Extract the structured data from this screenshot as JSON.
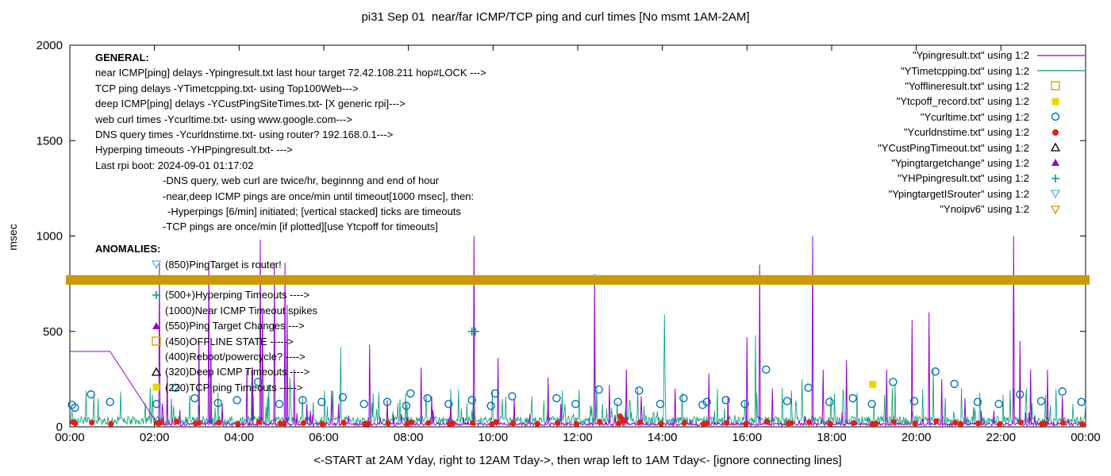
{
  "title": "pi31 Sep 01  near/far ICMP/TCP ping and curl times [No msmt 1AM-2AM]",
  "axes": {
    "ylabel": "msec",
    "xlabel": "<-START at 2AM Yday, right to 12AM Tday->, then wrap left to 1AM Tday<- [ignore connecting lines]",
    "ylim": [
      0,
      2000
    ],
    "yticks": [
      0,
      500,
      1000,
      1500,
      2000
    ],
    "xticks": [
      "00:00",
      "02:00",
      "04:00",
      "06:00",
      "08:00",
      "10:00",
      "12:00",
      "14:00",
      "16:00",
      "18:00",
      "20:00",
      "22:00",
      "00:00"
    ]
  },
  "legend": [
    {
      "label": "\"Ypingresult.txt\" using 1:2",
      "sample": "line",
      "color": "#9400D3"
    },
    {
      "label": "\"YTimetcpping.txt\" using 1:2",
      "sample": "line",
      "color": "#009E73"
    },
    {
      "label": "\"Yofflineresult.txt\" using 1:2",
      "sample": "square-open",
      "color": "#E69F00"
    },
    {
      "label": "\"Ytcpoff_record.txt\" using 1:2",
      "sample": "square-filled",
      "color": "#E9D700"
    },
    {
      "label": "\"Ycurltime.txt\" using 1:2",
      "sample": "circle-open",
      "color": "#0072B2"
    },
    {
      "label": "\"Ycurldnstime.txt\" using 1:2",
      "sample": "circle-filled",
      "color": "#E51E10"
    },
    {
      "label": "\"YCustPingTimeout.txt\" using 1:2",
      "sample": "tri-up-open",
      "color": "#000000"
    },
    {
      "label": "\"Ypingtargetchange\" using 1:2",
      "sample": "tri-up-filled",
      "color": "#9400D3"
    },
    {
      "label": "\"YHPpingresult.txt\" using 1:2",
      "sample": "plus",
      "color": "#009E73"
    },
    {
      "label": "\"YpingtargetISrouter\" using 1:2",
      "sample": "tri-down-open",
      "color": "#56B4E9"
    },
    {
      "label": "\"Ynoipv6\" using 1:2",
      "sample": "tri-down-open",
      "color": "#CC9900"
    }
  ],
  "general": {
    "heading": "GENERAL:",
    "lines": [
      {
        "text": "near ICMP[ping] delays -Ypingresult.txt last hour target 72.42.108.211 hop#LOCK --->",
        "indent": 0
      },
      {
        "text": "TCP ping delays -YTimetcpping.txt- using Top100Web--->",
        "indent": 0
      },
      {
        "text": "deep ICMP[ping] delays -YCustPingSiteTimes.txt- [X generic rpi]--->",
        "indent": 0
      },
      {
        "text": "web curl times -Ycurltime.txt- using www.google.com--->",
        "indent": 0
      },
      {
        "text": "DNS query times -Ycurldnstime.txt- using router? 192.168.0.1--->",
        "indent": 0
      },
      {
        "text": "Hyperping timeouts -YHPpingresult.txt- --->",
        "indent": 0
      },
      {
        "text": "Last rpi boot: 2024-09-01 01:17:02",
        "indent": 0
      },
      {
        "text": "-DNS query, web curl are twice/hr, beginnng and end of hour",
        "indent": 1
      },
      {
        "text": "-near,deep ICMP pings are once/min until timeout[1000 msec], then:",
        "indent": 1
      },
      {
        "text": "-Hyperpings [6/min] initiated; [vertical stacked] ticks are timeouts",
        "indent": 2
      },
      {
        "text": "-TCP pings are once/min [if plotted][use Ytcpoff for timeouts]",
        "indent": 1
      }
    ]
  },
  "anomalies": {
    "heading": "ANOMALIES:",
    "items": [
      {
        "marker": "tri-down-open",
        "color": "#56B4E9",
        "text": "(850)PingTarget is router!"
      },
      {
        "marker": "none",
        "color": "",
        "text": ""
      },
      {
        "marker": "plus",
        "color": "#009E73",
        "text": "(500+)Hyperping Timeouts ---->"
      },
      {
        "marker": "none",
        "color": "",
        "text": "(1000)Near ICMP Timeout spikes"
      },
      {
        "marker": "tri-up-filled",
        "color": "#9400D3",
        "text": "(550)Ping Target Changes --->"
      },
      {
        "marker": "square-open",
        "color": "#E69F00",
        "text": "(450)OFFLINE STATE ----->"
      },
      {
        "marker": "none",
        "color": "",
        "text": "(400)Reboot/powercycle? ---->"
      },
      {
        "marker": "tri-up-open",
        "color": "#000000",
        "text": "(320)Deep ICMP Timeouts ---->"
      },
      {
        "marker": "square-filled",
        "color": "#E9D700",
        "text": "(220)TCP ping Timeouts ----->"
      }
    ]
  },
  "chart_data": {
    "type": "line+scatter",
    "x_unit": "hours 0-24 (wrapped day)",
    "xlim": [
      0,
      24
    ],
    "ylim": [
      0,
      2000
    ],
    "grid": false,
    "legend_position": "top-right",
    "colors": {
      "ping": "#9400D3",
      "tcp": "#009E73",
      "offline": "#E69F00",
      "tcpoff": "#E9D700",
      "curl": "#0072B2",
      "dns": "#E51E10",
      "custping": "#000000",
      "targetchange": "#9400D3",
      "hp": "#009E73",
      "isrouter": "#56B4E9",
      "noipv6": "#CC9900"
    },
    "ping_initial": {
      "flat_value": 395,
      "flat_until": 0.95,
      "ramp_end_t": 2.07,
      "ramp_end_value": 15
    },
    "ping_baseline": {
      "min": 6,
      "max": 22
    },
    "tcp_baseline": {
      "min": 12,
      "max": 55,
      "spike_chance": 0.08,
      "spike_max": 150
    },
    "ping_spikes": [
      [
        2.12,
        860
      ],
      [
        2.18,
        120
      ],
      [
        2.3,
        270
      ],
      [
        2.6,
        90
      ],
      [
        3.05,
        450
      ],
      [
        3.28,
        870
      ],
      [
        3.33,
        430
      ],
      [
        3.6,
        120
      ],
      [
        4.18,
        300
      ],
      [
        4.32,
        310
      ],
      [
        4.5,
        980
      ],
      [
        4.55,
        620
      ],
      [
        4.83,
        860
      ],
      [
        5.08,
        860
      ],
      [
        5.13,
        640
      ],
      [
        5.3,
        300
      ],
      [
        5.6,
        120
      ],
      [
        6.18,
        190
      ],
      [
        6.35,
        120
      ],
      [
        7.08,
        430
      ],
      [
        7.5,
        140
      ],
      [
        8.3,
        310
      ],
      [
        8.55,
        160
      ],
      [
        9.0,
        120
      ],
      [
        9.55,
        1000
      ],
      [
        10.12,
        360
      ],
      [
        10.5,
        150
      ],
      [
        11.3,
        260
      ],
      [
        11.6,
        120
      ],
      [
        12.4,
        800
      ],
      [
        12.75,
        220
      ],
      [
        13.15,
        300
      ],
      [
        13.5,
        160
      ],
      [
        14.3,
        200
      ],
      [
        15.1,
        280
      ],
      [
        15.55,
        160
      ],
      [
        16.0,
        470
      ],
      [
        16.3,
        850
      ],
      [
        16.6,
        200
      ],
      [
        17.55,
        1000
      ],
      [
        17.8,
        300
      ],
      [
        18.35,
        350
      ],
      [
        19.3,
        300
      ],
      [
        19.9,
        560
      ],
      [
        20.3,
        600
      ],
      [
        20.6,
        250
      ],
      [
        21.15,
        150
      ],
      [
        22.3,
        1000
      ],
      [
        22.45,
        450
      ],
      [
        22.7,
        300
      ],
      [
        23.1,
        300
      ],
      [
        23.45,
        160
      ]
    ],
    "tcp_spikes": [
      [
        2.4,
        150
      ],
      [
        3.5,
        180
      ],
      [
        4.3,
        300
      ],
      [
        4.7,
        220
      ],
      [
        5.2,
        260
      ],
      [
        6.4,
        420
      ],
      [
        7.3,
        180
      ],
      [
        9.0,
        200
      ],
      [
        10.3,
        160
      ],
      [
        12.4,
        380
      ],
      [
        14.05,
        590
      ],
      [
        15.3,
        200
      ],
      [
        16.2,
        480
      ],
      [
        17.3,
        250
      ],
      [
        18.6,
        180
      ],
      [
        19.5,
        220
      ],
      [
        20.4,
        300
      ],
      [
        21.5,
        180
      ],
      [
        22.6,
        200
      ],
      [
        23.3,
        200
      ]
    ],
    "curl_points": [
      [
        0.05,
        115
      ],
      [
        0.12,
        100
      ],
      [
        0.5,
        170
      ],
      [
        0.95,
        130
      ],
      [
        2.05,
        120
      ],
      [
        2.5,
        205
      ],
      [
        2.95,
        150
      ],
      [
        3.5,
        125
      ],
      [
        3.95,
        140
      ],
      [
        4.45,
        235
      ],
      [
        4.95,
        120
      ],
      [
        5.5,
        140
      ],
      [
        5.95,
        130
      ],
      [
        6.45,
        155
      ],
      [
        6.95,
        120
      ],
      [
        7.5,
        130
      ],
      [
        7.95,
        110
      ],
      [
        8.05,
        175
      ],
      [
        8.45,
        150
      ],
      [
        8.95,
        120
      ],
      [
        9.5,
        140
      ],
      [
        9.95,
        110
      ],
      [
        10.05,
        175
      ],
      [
        10.45,
        160
      ],
      [
        11.5,
        150
      ],
      [
        11.95,
        120
      ],
      [
        12.5,
        195
      ],
      [
        12.95,
        130
      ],
      [
        13.45,
        190
      ],
      [
        13.95,
        120
      ],
      [
        14.5,
        150
      ],
      [
        14.95,
        115
      ],
      [
        15.05,
        130
      ],
      [
        15.5,
        140
      ],
      [
        15.95,
        120
      ],
      [
        16.45,
        300
      ],
      [
        16.95,
        135
      ],
      [
        17.45,
        205
      ],
      [
        17.95,
        130
      ],
      [
        18.5,
        150
      ],
      [
        18.95,
        120
      ],
      [
        19.45,
        235
      ],
      [
        19.95,
        135
      ],
      [
        20.45,
        290
      ],
      [
        20.9,
        225
      ],
      [
        21.45,
        130
      ],
      [
        21.95,
        120
      ],
      [
        22.45,
        170
      ],
      [
        22.95,
        135
      ],
      [
        23.45,
        185
      ],
      [
        23.9,
        130
      ]
    ],
    "dns_points": [
      [
        0.07,
        25
      ],
      [
        0.13,
        18
      ],
      [
        0.52,
        22
      ],
      [
        0.97,
        15
      ],
      [
        2.07,
        20
      ],
      [
        2.1,
        18
      ],
      [
        2.15,
        22
      ],
      [
        2.52,
        28
      ],
      [
        2.97,
        18
      ],
      [
        3.05,
        20
      ],
      [
        3.52,
        22
      ],
      [
        3.97,
        16
      ],
      [
        4.47,
        25
      ],
      [
        4.97,
        18
      ],
      [
        5.05,
        18
      ],
      [
        5.52,
        20
      ],
      [
        5.97,
        15
      ],
      [
        6.47,
        22
      ],
      [
        6.97,
        16
      ],
      [
        7.05,
        16
      ],
      [
        7.52,
        18
      ],
      [
        7.97,
        14
      ],
      [
        8.07,
        24
      ],
      [
        8.47,
        20
      ],
      [
        8.97,
        15
      ],
      [
        9.05,
        18
      ],
      [
        9.52,
        20
      ],
      [
        9.97,
        14
      ],
      [
        10.07,
        24
      ],
      [
        10.47,
        18
      ],
      [
        11.05,
        16
      ],
      [
        11.52,
        20
      ],
      [
        11.97,
        15
      ],
      [
        12.52,
        26
      ],
      [
        12.97,
        18
      ],
      [
        13.0,
        55
      ],
      [
        13.05,
        40
      ],
      [
        13.1,
        30
      ],
      [
        13.47,
        24
      ],
      [
        13.97,
        16
      ],
      [
        14.52,
        20
      ],
      [
        14.97,
        15
      ],
      [
        15.05,
        18
      ],
      [
        15.52,
        20
      ],
      [
        15.97,
        15
      ],
      [
        16.47,
        28
      ],
      [
        16.97,
        18
      ],
      [
        17.05,
        20
      ],
      [
        17.47,
        24
      ],
      [
        17.97,
        16
      ],
      [
        18.52,
        20
      ],
      [
        18.97,
        15
      ],
      [
        19.05,
        18
      ],
      [
        19.47,
        26
      ],
      [
        19.97,
        18
      ],
      [
        20.47,
        30
      ],
      [
        20.92,
        22
      ],
      [
        21.05,
        16
      ],
      [
        21.47,
        18
      ],
      [
        21.97,
        14
      ],
      [
        22.47,
        22
      ],
      [
        22.97,
        16
      ],
      [
        23.05,
        18
      ],
      [
        23.47,
        20
      ],
      [
        23.92,
        15
      ]
    ],
    "hp_points": [
      [
        9.5,
        500
      ],
      [
        9.58,
        500
      ]
    ],
    "tcpoff_points": [
      [
        18.97,
        222
      ]
    ],
    "offline_points": [],
    "custping_points": [],
    "targetchange_points": [],
    "isrouter_points": [],
    "noipv6_band": {
      "y": 770,
      "height_msec": 50
    }
  }
}
